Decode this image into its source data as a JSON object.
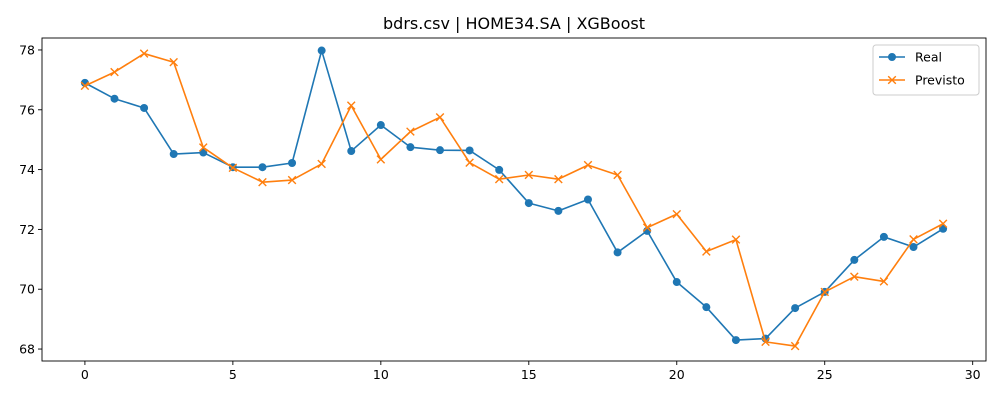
{
  "chart_data": {
    "type": "line",
    "title": "bdrs.csv | HOME34.SA | XGBoost",
    "xlabel": "",
    "ylabel": "",
    "x": [
      0,
      1,
      2,
      3,
      4,
      5,
      6,
      7,
      8,
      9,
      10,
      11,
      12,
      13,
      14,
      15,
      16,
      17,
      18,
      19,
      20,
      21,
      22,
      23,
      24,
      25,
      26,
      27,
      28,
      29
    ],
    "xlim": [
      -1.45,
      30.45
    ],
    "ylim": [
      67.6,
      78.4
    ],
    "xticks": [
      0,
      5,
      10,
      15,
      20,
      25,
      30
    ],
    "xtick_labels": [
      "0",
      "5",
      "10",
      "15",
      "20",
      "25",
      "30"
    ],
    "yticks": [
      68,
      70,
      72,
      74,
      76,
      78
    ],
    "ytick_labels": [
      "68",
      "70",
      "72",
      "74",
      "76",
      "78"
    ],
    "grid": false,
    "legend_position": "top-right",
    "series": [
      {
        "name": "Real",
        "color": "#1f77b4",
        "marker": "circle",
        "values": [
          76.9,
          76.37,
          76.06,
          74.52,
          74.57,
          74.08,
          74.08,
          74.22,
          77.98,
          74.62,
          75.49,
          74.75,
          74.65,
          74.64,
          73.99,
          72.88,
          72.62,
          73.0,
          71.23,
          71.95,
          70.24,
          69.4,
          68.3,
          68.35,
          69.37,
          69.91,
          70.98,
          71.75,
          71.41,
          72.02
        ]
      },
      {
        "name": "Previsto",
        "color": "#ff7f0e",
        "marker": "x",
        "values": [
          76.8,
          77.26,
          77.88,
          77.59,
          74.74,
          74.06,
          73.58,
          73.65,
          74.19,
          76.14,
          74.34,
          75.27,
          75.75,
          74.23,
          73.68,
          73.82,
          73.68,
          74.15,
          73.82,
          72.06,
          72.51,
          71.26,
          71.66,
          68.24,
          68.1,
          69.91,
          70.42,
          70.26,
          71.67,
          72.19
        ]
      }
    ]
  }
}
